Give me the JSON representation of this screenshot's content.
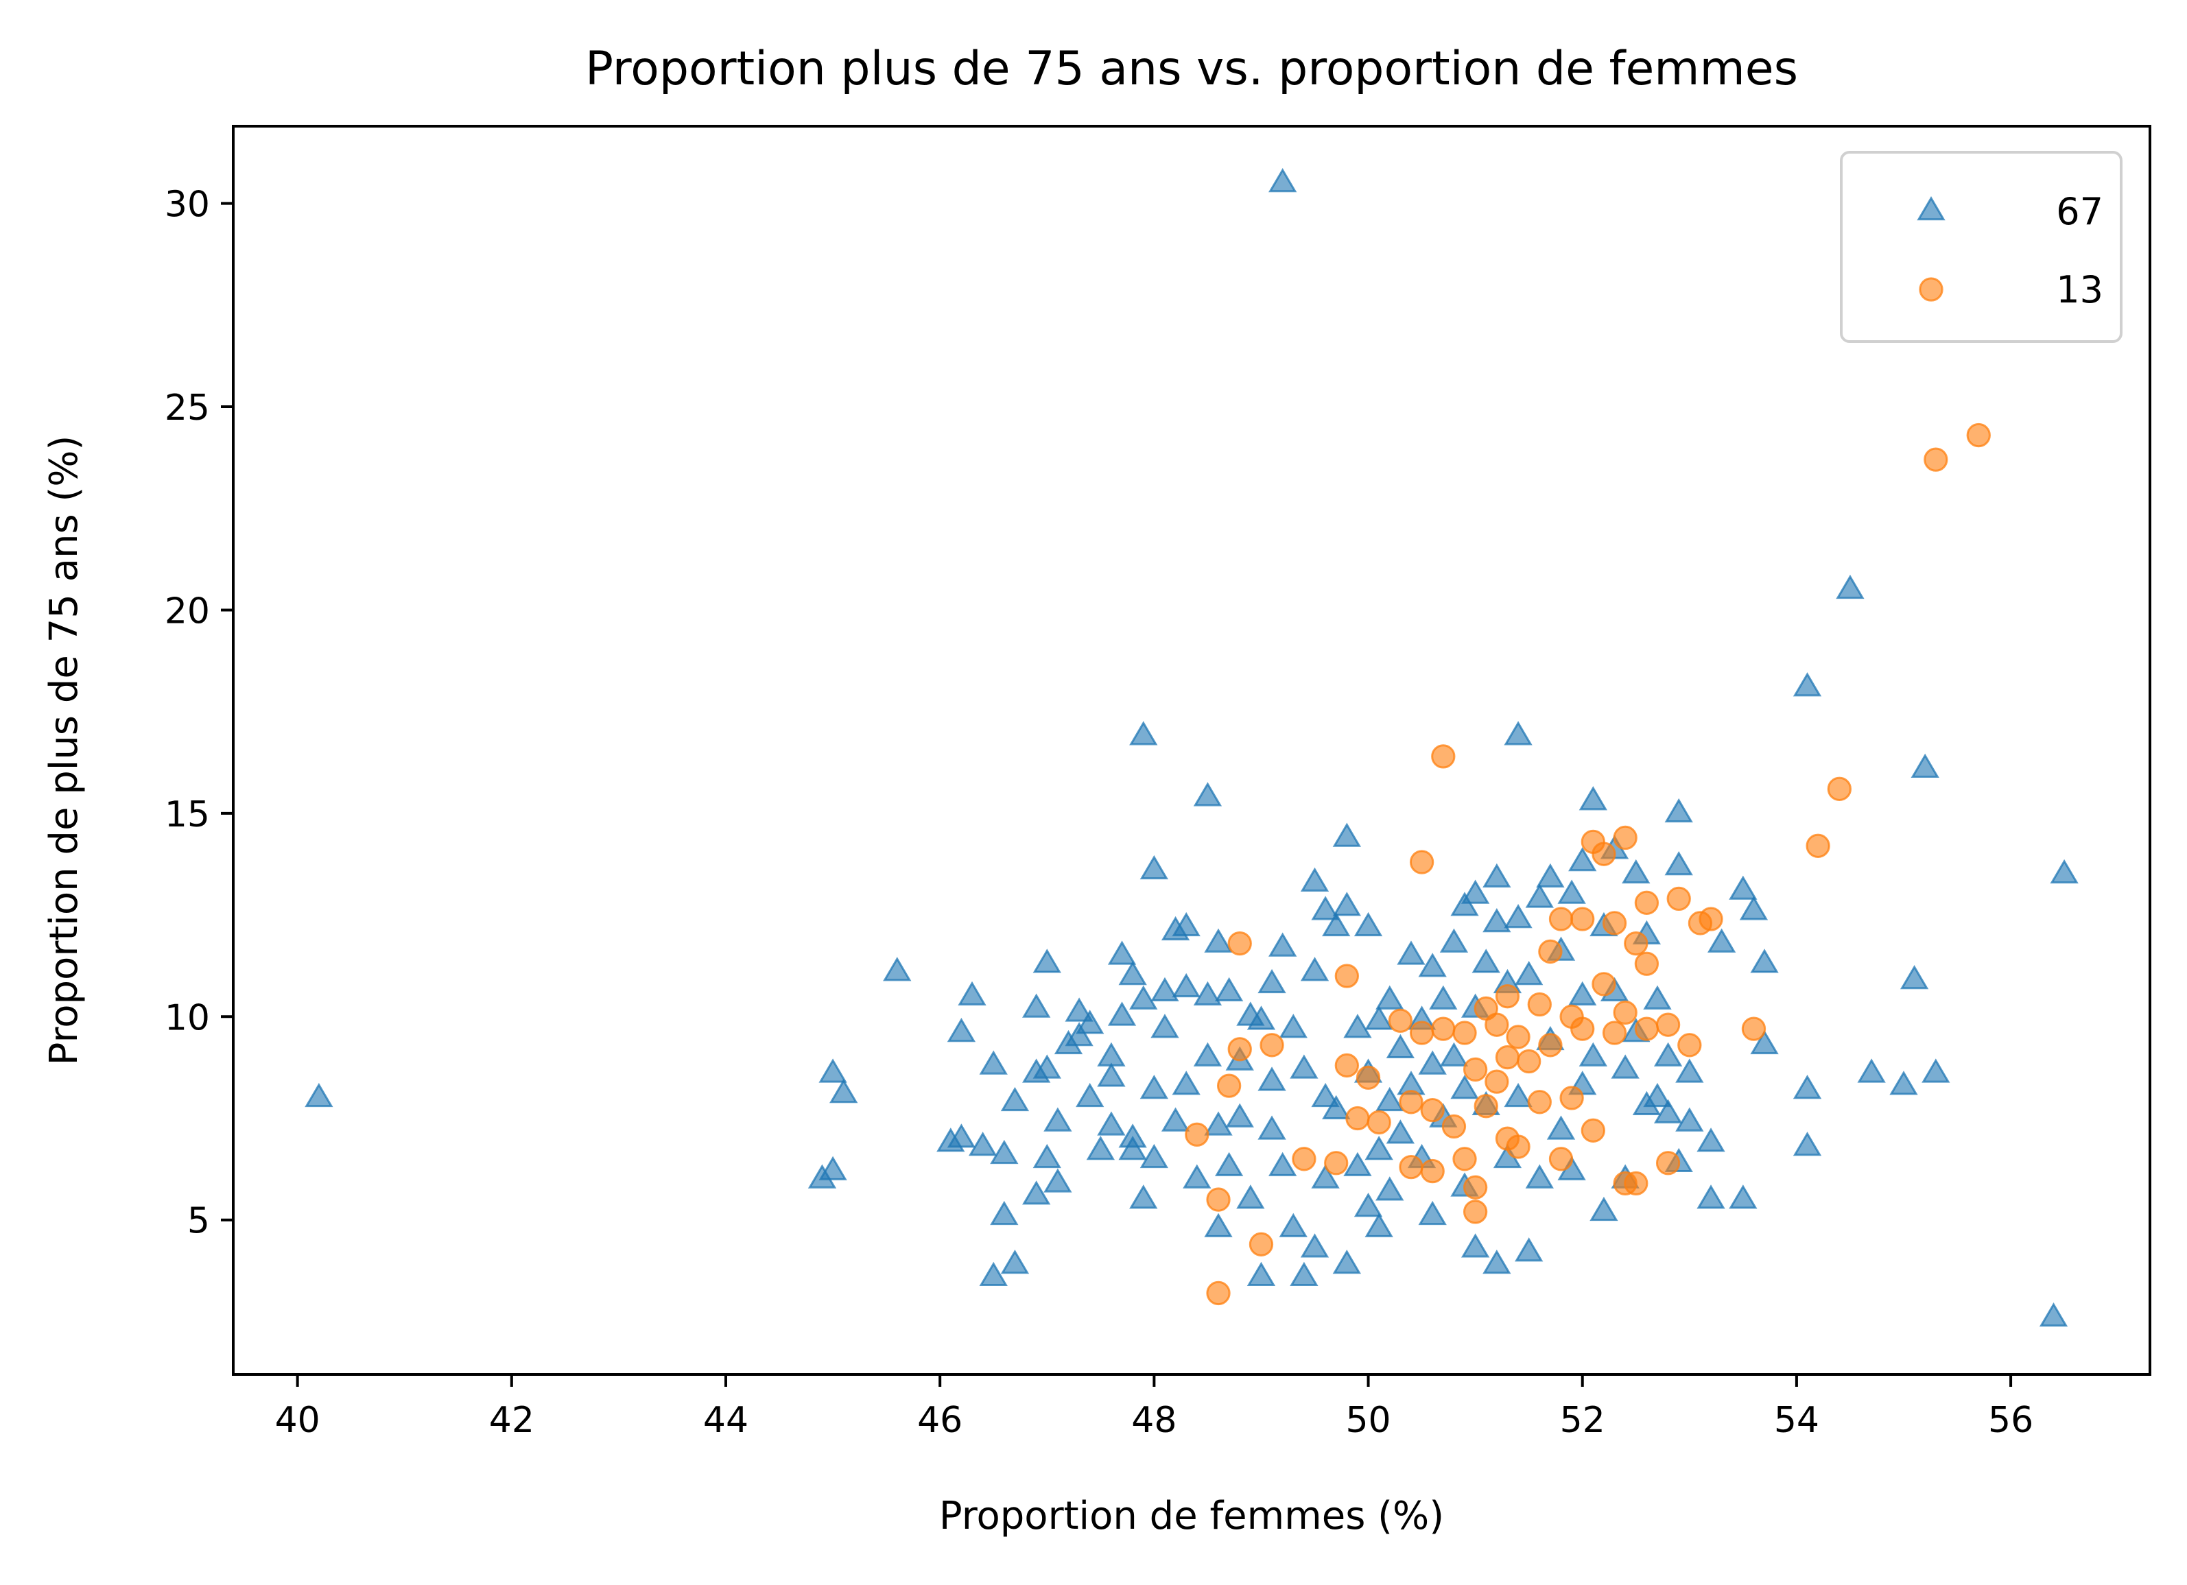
{
  "chart_data": {
    "type": "scatter",
    "title": "Proportion plus de 75 ans vs. proportion de femmes",
    "xlabel": "Proportion de femmes (%)",
    "ylabel": "Proportion de plus de 75 ans (%)",
    "xlim": [
      39.4,
      57.3
    ],
    "ylim": [
      1.2,
      31.9
    ],
    "xticks": [
      40,
      42,
      44,
      46,
      48,
      50,
      52,
      54,
      56
    ],
    "yticks": [
      5,
      10,
      15,
      20,
      25,
      30
    ],
    "grid": false,
    "legend_position": "top-right",
    "series": [
      {
        "name": "67",
        "marker": "triangle",
        "color": "#1f77b4",
        "points": [
          [
            40.2,
            8.0
          ],
          [
            45.6,
            11.1
          ],
          [
            44.9,
            6.0
          ],
          [
            45.0,
            6.2
          ],
          [
            45.0,
            8.6
          ],
          [
            45.1,
            8.1
          ],
          [
            46.1,
            6.9
          ],
          [
            46.2,
            7.0
          ],
          [
            46.2,
            9.6
          ],
          [
            46.3,
            10.5
          ],
          [
            46.4,
            6.8
          ],
          [
            46.5,
            8.8
          ],
          [
            46.5,
            3.6
          ],
          [
            46.6,
            6.6
          ],
          [
            46.6,
            5.1
          ],
          [
            46.7,
            7.9
          ],
          [
            46.7,
            3.9
          ],
          [
            46.9,
            5.6
          ],
          [
            46.9,
            8.6
          ],
          [
            46.9,
            10.2
          ],
          [
            47.0,
            11.3
          ],
          [
            47.0,
            6.5
          ],
          [
            47.0,
            8.7
          ],
          [
            47.1,
            7.4
          ],
          [
            47.1,
            5.9
          ],
          [
            47.2,
            9.3
          ],
          [
            47.3,
            10.1
          ],
          [
            47.3,
            9.5
          ],
          [
            47.4,
            8.0
          ],
          [
            47.4,
            9.8
          ],
          [
            47.5,
            6.7
          ],
          [
            47.6,
            7.3
          ],
          [
            47.6,
            8.5
          ],
          [
            47.6,
            9.0
          ],
          [
            47.7,
            10.0
          ],
          [
            47.7,
            11.5
          ],
          [
            47.8,
            11.0
          ],
          [
            47.8,
            7.0
          ],
          [
            47.8,
            6.7
          ],
          [
            47.9,
            10.4
          ],
          [
            47.9,
            16.9
          ],
          [
            47.9,
            5.5
          ],
          [
            48.0,
            13.6
          ],
          [
            48.0,
            8.2
          ],
          [
            48.0,
            6.5
          ],
          [
            48.1,
            9.7
          ],
          [
            48.1,
            10.6
          ],
          [
            48.2,
            12.1
          ],
          [
            48.2,
            7.4
          ],
          [
            48.3,
            12.2
          ],
          [
            48.3,
            10.7
          ],
          [
            48.3,
            8.3
          ],
          [
            48.4,
            6.0
          ],
          [
            48.5,
            15.4
          ],
          [
            48.5,
            9.0
          ],
          [
            48.5,
            10.5
          ],
          [
            48.6,
            11.8
          ],
          [
            48.6,
            7.3
          ],
          [
            48.6,
            4.8
          ],
          [
            48.7,
            6.3
          ],
          [
            48.7,
            10.6
          ],
          [
            48.8,
            8.9
          ],
          [
            48.8,
            7.5
          ],
          [
            48.9,
            10.0
          ],
          [
            48.9,
            5.5
          ],
          [
            49.0,
            9.9
          ],
          [
            49.0,
            3.6
          ],
          [
            49.1,
            8.4
          ],
          [
            49.1,
            7.2
          ],
          [
            49.1,
            10.8
          ],
          [
            49.2,
            30.5
          ],
          [
            49.2,
            11.7
          ],
          [
            49.2,
            6.3
          ],
          [
            49.3,
            9.7
          ],
          [
            49.3,
            4.8
          ],
          [
            49.4,
            3.6
          ],
          [
            49.4,
            8.7
          ],
          [
            49.5,
            13.3
          ],
          [
            49.5,
            11.1
          ],
          [
            49.5,
            4.3
          ],
          [
            49.6,
            12.6
          ],
          [
            49.6,
            8.0
          ],
          [
            49.6,
            6.0
          ],
          [
            49.7,
            12.2
          ],
          [
            49.7,
            7.7
          ],
          [
            49.8,
            14.4
          ],
          [
            49.8,
            12.7
          ],
          [
            49.8,
            3.9
          ],
          [
            49.9,
            9.7
          ],
          [
            49.9,
            6.3
          ],
          [
            50.0,
            12.2
          ],
          [
            50.0,
            8.6
          ],
          [
            50.0,
            5.3
          ],
          [
            50.1,
            9.9
          ],
          [
            50.1,
            6.7
          ],
          [
            50.1,
            4.8
          ],
          [
            50.2,
            10.4
          ],
          [
            50.2,
            7.9
          ],
          [
            50.2,
            5.7
          ],
          [
            50.3,
            9.2
          ],
          [
            50.3,
            7.1
          ],
          [
            50.4,
            11.5
          ],
          [
            50.4,
            8.3
          ],
          [
            50.5,
            9.9
          ],
          [
            50.5,
            6.5
          ],
          [
            50.6,
            11.2
          ],
          [
            50.6,
            8.8
          ],
          [
            50.6,
            5.1
          ],
          [
            50.7,
            10.4
          ],
          [
            50.7,
            7.5
          ],
          [
            50.8,
            11.8
          ],
          [
            50.8,
            9.0
          ],
          [
            50.9,
            12.7
          ],
          [
            50.9,
            8.2
          ],
          [
            50.9,
            5.8
          ],
          [
            51.0,
            13.0
          ],
          [
            51.0,
            10.2
          ],
          [
            51.0,
            4.3
          ],
          [
            51.1,
            11.3
          ],
          [
            51.1,
            7.8
          ],
          [
            51.2,
            13.4
          ],
          [
            51.2,
            12.3
          ],
          [
            51.2,
            3.9
          ],
          [
            51.3,
            10.8
          ],
          [
            51.3,
            6.5
          ],
          [
            51.4,
            16.9
          ],
          [
            51.4,
            12.4
          ],
          [
            51.4,
            8.0
          ],
          [
            51.5,
            11.0
          ],
          [
            51.5,
            4.2
          ],
          [
            51.6,
            12.9
          ],
          [
            51.6,
            6.0
          ],
          [
            51.7,
            13.4
          ],
          [
            51.7,
            9.4
          ],
          [
            51.8,
            11.6
          ],
          [
            51.8,
            7.2
          ],
          [
            51.9,
            13.0
          ],
          [
            51.9,
            6.2
          ],
          [
            52.0,
            13.8
          ],
          [
            52.0,
            10.5
          ],
          [
            52.0,
            8.3
          ],
          [
            52.1,
            15.3
          ],
          [
            52.1,
            9.0
          ],
          [
            52.2,
            12.2
          ],
          [
            52.2,
            5.2
          ],
          [
            52.3,
            14.1
          ],
          [
            52.3,
            10.6
          ],
          [
            52.4,
            8.7
          ],
          [
            52.4,
            6.0
          ],
          [
            52.5,
            13.5
          ],
          [
            52.5,
            9.6
          ],
          [
            52.6,
            12.0
          ],
          [
            52.6,
            7.8
          ],
          [
            52.7,
            10.4
          ],
          [
            52.7,
            8.0
          ],
          [
            52.8,
            9.0
          ],
          [
            52.8,
            7.6
          ],
          [
            52.9,
            15.0
          ],
          [
            52.9,
            13.7
          ],
          [
            52.9,
            6.4
          ],
          [
            53.0,
            8.6
          ],
          [
            53.0,
            7.4
          ],
          [
            53.2,
            6.9
          ],
          [
            53.2,
            5.5
          ],
          [
            53.3,
            11.8
          ],
          [
            53.5,
            13.1
          ],
          [
            53.5,
            5.5
          ],
          [
            53.6,
            12.6
          ],
          [
            53.7,
            11.3
          ],
          [
            53.7,
            9.3
          ],
          [
            54.1,
            18.1
          ],
          [
            54.1,
            8.2
          ],
          [
            54.1,
            6.8
          ],
          [
            54.5,
            20.5
          ],
          [
            54.7,
            8.6
          ],
          [
            55.0,
            8.3
          ],
          [
            55.1,
            10.9
          ],
          [
            55.2,
            16.1
          ],
          [
            55.3,
            8.6
          ],
          [
            56.4,
            2.6
          ],
          [
            56.5,
            13.5
          ]
        ]
      },
      {
        "name": "13",
        "marker": "circle",
        "color": "#ff7f0e",
        "points": [
          [
            48.4,
            7.1
          ],
          [
            48.6,
            5.5
          ],
          [
            48.6,
            3.2
          ],
          [
            48.7,
            8.3
          ],
          [
            48.8,
            11.8
          ],
          [
            48.8,
            9.2
          ],
          [
            49.0,
            4.4
          ],
          [
            49.1,
            9.3
          ],
          [
            49.4,
            6.5
          ],
          [
            49.7,
            6.4
          ],
          [
            49.8,
            11.0
          ],
          [
            49.8,
            8.8
          ],
          [
            49.9,
            7.5
          ],
          [
            50.0,
            8.5
          ],
          [
            50.1,
            7.4
          ],
          [
            50.3,
            9.9
          ],
          [
            50.4,
            6.3
          ],
          [
            50.4,
            7.9
          ],
          [
            50.5,
            13.8
          ],
          [
            50.5,
            9.6
          ],
          [
            50.6,
            6.2
          ],
          [
            50.6,
            7.7
          ],
          [
            50.7,
            16.4
          ],
          [
            50.7,
            9.7
          ],
          [
            50.8,
            7.3
          ],
          [
            50.9,
            9.6
          ],
          [
            50.9,
            6.5
          ],
          [
            51.0,
            8.7
          ],
          [
            51.0,
            5.2
          ],
          [
            51.0,
            5.8
          ],
          [
            51.1,
            10.2
          ],
          [
            51.1,
            7.8
          ],
          [
            51.2,
            9.8
          ],
          [
            51.2,
            8.4
          ],
          [
            51.3,
            10.5
          ],
          [
            51.3,
            9.0
          ],
          [
            51.3,
            7.0
          ],
          [
            51.4,
            9.5
          ],
          [
            51.4,
            6.8
          ],
          [
            51.5,
            8.9
          ],
          [
            51.6,
            10.3
          ],
          [
            51.6,
            7.9
          ],
          [
            51.7,
            11.6
          ],
          [
            51.7,
            9.3
          ],
          [
            51.8,
            12.4
          ],
          [
            51.8,
            6.5
          ],
          [
            51.9,
            10.0
          ],
          [
            51.9,
            8.0
          ],
          [
            52.0,
            12.4
          ],
          [
            52.0,
            9.7
          ],
          [
            52.1,
            14.3
          ],
          [
            52.1,
            7.2
          ],
          [
            52.2,
            14.0
          ],
          [
            52.2,
            10.8
          ],
          [
            52.3,
            12.3
          ],
          [
            52.3,
            9.6
          ],
          [
            52.4,
            14.4
          ],
          [
            52.4,
            10.1
          ],
          [
            52.4,
            5.9
          ],
          [
            52.5,
            11.8
          ],
          [
            52.5,
            5.9
          ],
          [
            52.6,
            12.8
          ],
          [
            52.6,
            11.3
          ],
          [
            52.6,
            9.7
          ],
          [
            52.8,
            9.8
          ],
          [
            52.8,
            6.4
          ],
          [
            52.9,
            12.9
          ],
          [
            53.0,
            9.3
          ],
          [
            53.1,
            12.3
          ],
          [
            53.2,
            12.4
          ],
          [
            53.6,
            9.7
          ],
          [
            54.2,
            14.2
          ],
          [
            54.4,
            15.6
          ],
          [
            55.3,
            23.7
          ],
          [
            55.7,
            24.3
          ]
        ]
      }
    ]
  }
}
